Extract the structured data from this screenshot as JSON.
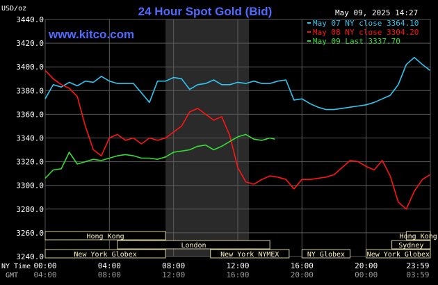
{
  "header": {
    "title": "24 Hour Spot Gold (Bid)",
    "currency": "USD/oz",
    "timestamp": "May 09, 2025 14:27",
    "watermark": "www.kitco.com"
  },
  "axis": {
    "nytime_label": "NY Time",
    "gmt_label": "GMT",
    "nytime_ticks": [
      "00:00",
      "04:00",
      "08:00",
      "12:00",
      "16:00",
      "20:00",
      "23:59"
    ],
    "gmt_ticks": [
      "04:00",
      "08:00",
      "12:00",
      "16:00",
      "20:00",
      "00:00",
      "03:59"
    ]
  },
  "sessions": [
    {
      "label": "Hong Kong",
      "start": 0.0,
      "end": 7.5
    },
    {
      "label": "London",
      "start": 4.5,
      "end": 14.0
    },
    {
      "label": "New York Globex",
      "start": 0.0,
      "end": 7.5
    },
    {
      "label": "New York NYMEX",
      "start": 10.3,
      "end": 15.2
    },
    {
      "label": "NY Globex",
      "start": 16.0,
      "end": 19.0
    },
    {
      "label": "Hong Kong",
      "start": 22.5,
      "end": 24.0
    },
    {
      "label": "Sydney",
      "start": 21.6,
      "end": 24.0
    },
    {
      "label": "New York Globex",
      "start": 20.0,
      "end": 24.0
    }
  ],
  "chart_data": {
    "type": "line",
    "title": "24 Hour Spot Gold (Bid)",
    "ylabel": "USD/oz",
    "xlim": [
      0,
      24
    ],
    "ylim": [
      3240,
      3440
    ],
    "yticks": [
      3440,
      3420,
      3400,
      3380,
      3360,
      3340,
      3320,
      3300,
      3280,
      3260,
      3240
    ],
    "ytick_labels": [
      "3440.0",
      "3420.0",
      "3400.0",
      "3380.0",
      "3360.0",
      "3340.0",
      "3320.0",
      "3300.0",
      "3280.0",
      "3260.0",
      "3240.0"
    ],
    "grid": true,
    "shaded_region": [
      7.5,
      12.7
    ],
    "legend": "top-right",
    "series": [
      {
        "name": "May 07 NY close 3364.10",
        "color": "#2ec6f0",
        "x": [
          0,
          0.5,
          1,
          1.5,
          2,
          2.5,
          3,
          3.5,
          4,
          4.5,
          5,
          5.5,
          6,
          6.5,
          7,
          7.5,
          8,
          8.5,
          9,
          9.5,
          10,
          10.5,
          11,
          11.5,
          12,
          12.5,
          13,
          13.5,
          14,
          14.5,
          15,
          15.5,
          16,
          16.5,
          17,
          17.5,
          18,
          18.5,
          19,
          19.5,
          20,
          20.5,
          21,
          21.5,
          22,
          22.5,
          23,
          23.5,
          23.98
        ],
        "values": [
          3373,
          3385,
          3383,
          3387,
          3384,
          3388,
          3387,
          3392,
          3388,
          3386,
          3386,
          3386,
          3378,
          3370,
          3388,
          3388,
          3391,
          3390,
          3381,
          3385,
          3386,
          3389,
          3385,
          3385,
          3387,
          3386,
          3388,
          3386,
          3386,
          3388,
          3389,
          3372,
          3373,
          3369,
          3366,
          3364,
          3364,
          3365,
          3366,
          3367,
          3368,
          3370,
          3373,
          3376,
          3385,
          3402,
          3408,
          3402,
          3397
        ]
      },
      {
        "name": "May 08 NY close 3304.20",
        "color": "#ff1414",
        "x": [
          0,
          0.5,
          1,
          1.5,
          2,
          2.5,
          3,
          3.5,
          4,
          4.5,
          5,
          5.5,
          6,
          6.5,
          7,
          7.5,
          8,
          8.5,
          9,
          9.5,
          10,
          10.5,
          11,
          11.5,
          12,
          12.5,
          13,
          13.5,
          14,
          14.5,
          15,
          15.5,
          16,
          16.5,
          17,
          17.5,
          18,
          18.5,
          19,
          19.5,
          20,
          20.5,
          21,
          21.5,
          22,
          22.5,
          23,
          23.5,
          23.98
        ],
        "values": [
          3397,
          3390,
          3385,
          3382,
          3375,
          3350,
          3330,
          3325,
          3340,
          3343,
          3338,
          3340,
          3335,
          3340,
          3338,
          3340,
          3345,
          3350,
          3362,
          3365,
          3360,
          3355,
          3358,
          3342,
          3315,
          3303,
          3301,
          3305,
          3308,
          3307,
          3305,
          3297,
          3305,
          3305,
          3306,
          3307,
          3309,
          3315,
          3321,
          3320,
          3316,
          3313,
          3321,
          3308,
          3286,
          3280,
          3295,
          3305,
          3309
        ]
      },
      {
        "name": "May 09 Last 3337.70",
        "color": "#33dd33",
        "x": [
          0,
          0.5,
          1,
          1.5,
          2,
          2.5,
          3,
          3.5,
          4,
          4.5,
          5,
          5.5,
          6,
          6.5,
          7,
          7.5,
          8,
          8.5,
          9,
          9.5,
          10,
          10.5,
          11,
          11.5,
          12,
          12.5,
          13,
          13.5,
          14,
          14.3
        ],
        "values": [
          3306,
          3313,
          3314,
          3328,
          3318,
          3320,
          3322,
          3321,
          3323,
          3325,
          3326,
          3325,
          3323,
          3323,
          3322,
          3324,
          3328,
          3329,
          3330,
          3333,
          3334,
          3330,
          3333,
          3337,
          3341,
          3343,
          3339,
          3338,
          3340,
          3339
        ]
      }
    ]
  }
}
